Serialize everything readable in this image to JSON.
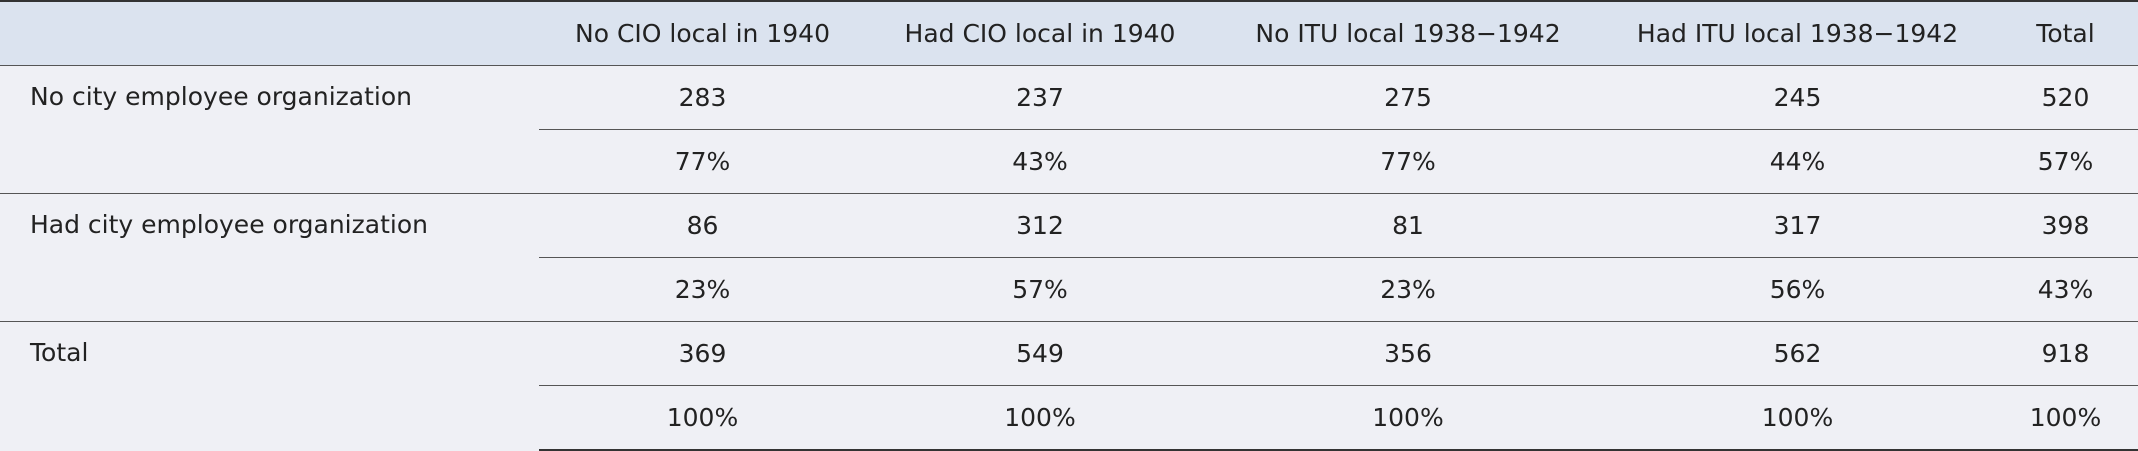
{
  "table": {
    "columns": [
      "No CIO local in 1940",
      "Had CIO local in 1940",
      "No ITU local 1938−1942",
      "Had ITU local 1938−1942",
      "Total"
    ],
    "groups": [
      {
        "label": "No city employee organization",
        "counts": [
          283,
          237,
          275,
          245,
          520
        ],
        "percents": [
          "77%",
          "43%",
          "77%",
          "44%",
          "57%"
        ]
      },
      {
        "label": "Had city employee organization",
        "counts": [
          86,
          312,
          81,
          317,
          398
        ],
        "percents": [
          "23%",
          "57%",
          "23%",
          "56%",
          "43%"
        ]
      },
      {
        "label": "Total",
        "counts": [
          369,
          549,
          356,
          562,
          918
        ],
        "percents": [
          "100%",
          "100%",
          "100%",
          "100%",
          "100%"
        ]
      }
    ]
  }
}
